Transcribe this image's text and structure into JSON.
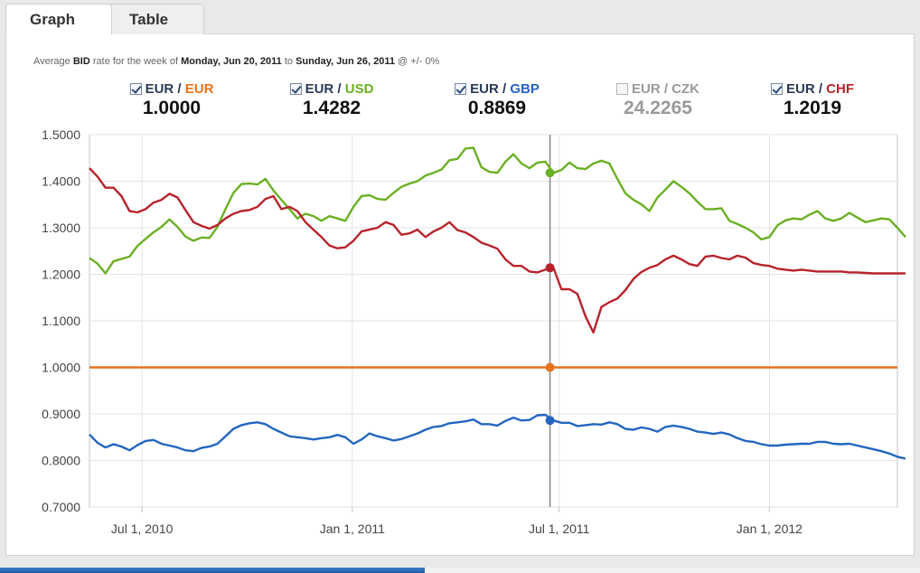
{
  "tabs": [
    {
      "label": "Graph",
      "active": true
    },
    {
      "label": "Table",
      "active": false
    }
  ],
  "description": {
    "prefix": "Average",
    "bid": "BID",
    "mid": "rate for the week of",
    "start": "Monday, Jun 20, 2011",
    "to": "to",
    "end": "Sunday, Jun 26, 2011",
    "suffix": "@ +/- 0%"
  },
  "legend": [
    {
      "base": "EUR",
      "quote": "EUR",
      "value": "1.0000",
      "checked": true,
      "color": "#e8721c"
    },
    {
      "base": "EUR",
      "quote": "USD",
      "value": "1.4282",
      "checked": true,
      "color": "#6ab023"
    },
    {
      "base": "EUR",
      "quote": "GBP",
      "value": "0.8869",
      "checked": true,
      "color": "#2366c0"
    },
    {
      "base": "EUR",
      "quote": "CZK",
      "value": "24.2265",
      "checked": false,
      "color": "#9a9a9a"
    },
    {
      "base": "EUR",
      "quote": "CHF",
      "value": "1.2019",
      "checked": true,
      "color": "#b8232b"
    }
  ],
  "chart_data": {
    "type": "line",
    "title": "",
    "xlabel": "",
    "ylabel": "",
    "x_start": "2010-05-16",
    "x_step": "week",
    "ylim": [
      0.7,
      1.5
    ],
    "yticks": [
      "1.5000",
      "1.4000",
      "1.3000",
      "1.2000",
      "1.1000",
      "1.0000",
      "0.9000",
      "0.8000",
      "0.7000"
    ],
    "xticks": [
      {
        "label": "Jul 1, 2010",
        "date": "2010-07-01"
      },
      {
        "label": "Jan 1, 2011",
        "date": "2011-01-01"
      },
      {
        "label": "Jul 1, 2011",
        "date": "2011-07-01"
      },
      {
        "label": "Jan 1, 2012",
        "date": "2012-01-01"
      }
    ],
    "grid": true,
    "cursor_date": "2011-06-23",
    "series": [
      {
        "name": "EUR/EUR",
        "color": "#e8721c",
        "values": [
          1.0,
          1.0,
          1.0,
          1.0,
          1.0,
          1.0,
          1.0,
          1.0,
          1.0,
          1.0,
          1.0,
          1.0,
          1.0,
          1.0,
          1.0,
          1.0,
          1.0,
          1.0,
          1.0,
          1.0,
          1.0,
          1.0,
          1.0,
          1.0,
          1.0,
          1.0,
          1.0,
          1.0,
          1.0,
          1.0,
          1.0,
          1.0,
          1.0,
          1.0,
          1.0,
          1.0,
          1.0,
          1.0,
          1.0,
          1.0,
          1.0,
          1.0,
          1.0,
          1.0,
          1.0,
          1.0,
          1.0,
          1.0,
          1.0,
          1.0,
          1.0,
          1.0,
          1.0,
          1.0,
          1.0,
          1.0,
          1.0,
          1.0,
          1.0,
          1.0,
          1.0,
          1.0,
          1.0,
          1.0,
          1.0,
          1.0,
          1.0,
          1.0,
          1.0,
          1.0,
          1.0,
          1.0,
          1.0,
          1.0,
          1.0,
          1.0,
          1.0,
          1.0,
          1.0,
          1.0,
          1.0,
          1.0,
          1.0,
          1.0,
          1.0,
          1.0,
          1.0,
          1.0,
          1.0,
          1.0,
          1.0,
          1.0,
          1.0,
          1.0,
          1.0,
          1.0,
          1.0,
          1.0,
          1.0,
          1.0,
          1.0,
          1.0
        ]
      },
      {
        "name": "EUR/USD",
        "color": "#6ab023",
        "values": [
          1.235,
          1.223,
          1.202,
          1.228,
          1.233,
          1.238,
          1.261,
          1.276,
          1.29,
          1.302,
          1.318,
          1.302,
          1.281,
          1.272,
          1.279,
          1.278,
          1.302,
          1.34,
          1.375,
          1.394,
          1.395,
          1.393,
          1.405,
          1.38,
          1.36,
          1.34,
          1.32,
          1.33,
          1.325,
          1.315,
          1.325,
          1.32,
          1.315,
          1.345,
          1.368,
          1.37,
          1.362,
          1.36,
          1.375,
          1.388,
          1.395,
          1.4,
          1.412,
          1.418,
          1.425,
          1.445,
          1.448,
          1.47,
          1.472,
          1.43,
          1.42,
          1.418,
          1.442,
          1.458,
          1.438,
          1.428,
          1.44,
          1.442,
          1.418,
          1.424,
          1.44,
          1.428,
          1.426,
          1.438,
          1.444,
          1.438,
          1.405,
          1.374,
          1.36,
          1.35,
          1.336,
          1.365,
          1.382,
          1.4,
          1.388,
          1.374,
          1.356,
          1.34,
          1.34,
          1.342,
          1.315,
          1.308,
          1.3,
          1.29,
          1.275,
          1.28,
          1.305,
          1.316,
          1.32,
          1.318,
          1.328,
          1.336,
          1.32,
          1.315,
          1.32,
          1.332,
          1.322,
          1.312,
          1.316,
          1.32,
          1.318,
          1.3,
          1.28
        ]
      },
      {
        "name": "EUR/GBP",
        "color": "#2366c0",
        "values": [
          0.856,
          0.838,
          0.828,
          0.835,
          0.83,
          0.822,
          0.833,
          0.842,
          0.844,
          0.836,
          0.832,
          0.828,
          0.822,
          0.82,
          0.827,
          0.83,
          0.836,
          0.852,
          0.868,
          0.876,
          0.88,
          0.882,
          0.878,
          0.868,
          0.86,
          0.852,
          0.85,
          0.848,
          0.845,
          0.848,
          0.85,
          0.855,
          0.85,
          0.836,
          0.845,
          0.858,
          0.852,
          0.848,
          0.843,
          0.846,
          0.852,
          0.858,
          0.866,
          0.872,
          0.874,
          0.88,
          0.882,
          0.884,
          0.888,
          0.878,
          0.878,
          0.875,
          0.885,
          0.892,
          0.886,
          0.887,
          0.897,
          0.898,
          0.886,
          0.881,
          0.881,
          0.874,
          0.876,
          0.878,
          0.877,
          0.882,
          0.878,
          0.868,
          0.866,
          0.871,
          0.868,
          0.862,
          0.872,
          0.875,
          0.872,
          0.868,
          0.862,
          0.86,
          0.857,
          0.86,
          0.856,
          0.848,
          0.842,
          0.84,
          0.835,
          0.832,
          0.832,
          0.834,
          0.835,
          0.836,
          0.836,
          0.84,
          0.84,
          0.836,
          0.835,
          0.836,
          0.832,
          0.828,
          0.824,
          0.82,
          0.815,
          0.808,
          0.804
        ]
      },
      {
        "name": "EUR/CHF",
        "color": "#b8232b",
        "values": [
          1.428,
          1.41,
          1.386,
          1.386,
          1.368,
          1.336,
          1.333,
          1.34,
          1.354,
          1.36,
          1.373,
          1.365,
          1.338,
          1.312,
          1.304,
          1.298,
          1.306,
          1.32,
          1.33,
          1.336,
          1.338,
          1.345,
          1.362,
          1.368,
          1.34,
          1.345,
          1.336,
          1.312,
          1.296,
          1.28,
          1.262,
          1.256,
          1.258,
          1.272,
          1.292,
          1.296,
          1.3,
          1.312,
          1.306,
          1.285,
          1.288,
          1.296,
          1.28,
          1.292,
          1.3,
          1.312,
          1.295,
          1.29,
          1.28,
          1.268,
          1.262,
          1.255,
          1.232,
          1.218,
          1.218,
          1.206,
          1.204,
          1.21,
          1.214,
          1.168,
          1.168,
          1.158,
          1.11,
          1.075,
          1.13,
          1.14,
          1.148,
          1.166,
          1.19,
          1.205,
          1.214,
          1.22,
          1.232,
          1.24,
          1.232,
          1.222,
          1.218,
          1.238,
          1.24,
          1.235,
          1.232,
          1.24,
          1.236,
          1.224,
          1.22,
          1.218,
          1.212,
          1.21,
          1.208,
          1.21,
          1.208,
          1.206,
          1.206,
          1.206,
          1.206,
          1.204,
          1.204,
          1.203,
          1.202,
          1.202,
          1.202,
          1.202,
          1.202
        ]
      }
    ],
    "colors": {
      "grid": "#e3e3e3",
      "axis": "#c4c4c4",
      "cursor": "#888888"
    }
  }
}
